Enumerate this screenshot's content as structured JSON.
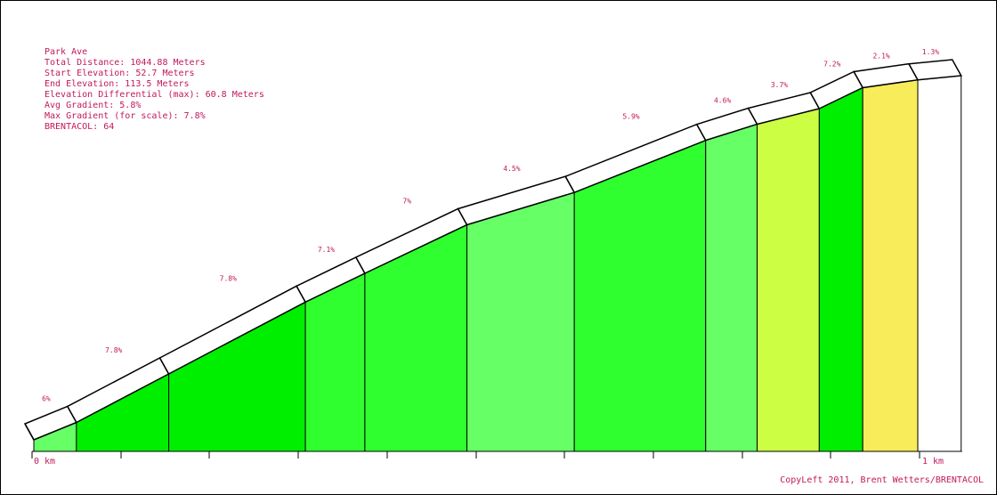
{
  "info": {
    "name": "Park Ave",
    "total_distance": "Total Distance: 1044.88 Meters",
    "start_elevation": "Start Elevation: 52.7 Meters",
    "end_elevation": "End Elevation: 113.5 Meters",
    "elevation_diff": "Elevation Differential (max): 60.8 Meters",
    "avg_gradient": "Avg Gradient: 5.8%",
    "max_gradient": "Max Gradient (for scale): 7.8%",
    "brentacol": "BRENTACOL: 64"
  },
  "credit": "CopyLeft 2011, Brent Wetters/BRENTACOL",
  "colors": {
    "text": "#c2185b",
    "band_white": "#ffffff",
    "dark_green": "#00ee00",
    "mid_green": "#2fff2f",
    "light_green": "#66ff66",
    "yellow_green": "#ccff44",
    "yellow": "#f8ec5a"
  },
  "chart_data": {
    "type": "area",
    "title": "Park Ave",
    "x_unit": "km",
    "xlim": [
      0,
      1.04488
    ],
    "ylim": [
      52.7,
      113.5
    ],
    "x_tick_labels": [
      "0 km",
      "1 km"
    ],
    "x_ticks": [
      0,
      0.1,
      0.2,
      0.3,
      0.4,
      0.5,
      0.6,
      0.7,
      0.8,
      0.9,
      1.0
    ],
    "segments": [
      {
        "start_km": 0.0,
        "end_km": 0.048,
        "gradient": "6%",
        "color": "light_green"
      },
      {
        "start_km": 0.048,
        "end_km": 0.152,
        "gradient": "7.8%",
        "color": "dark_green"
      },
      {
        "start_km": 0.152,
        "end_km": 0.306,
        "gradient": "7.8%",
        "color": "dark_green"
      },
      {
        "start_km": 0.306,
        "end_km": 0.373,
        "gradient": "7.1%",
        "color": "mid_green"
      },
      {
        "start_km": 0.373,
        "end_km": 0.488,
        "gradient": "7%",
        "color": "mid_green"
      },
      {
        "start_km": 0.488,
        "end_km": 0.609,
        "gradient": "4.5%",
        "color": "light_green"
      },
      {
        "start_km": 0.609,
        "end_km": 0.757,
        "gradient": "5.9%",
        "color": "mid_green"
      },
      {
        "start_km": 0.757,
        "end_km": 0.815,
        "gradient": "4.6%",
        "color": "light_green"
      },
      {
        "start_km": 0.815,
        "end_km": 0.885,
        "gradient": "3.7%",
        "color": "yellow_green"
      },
      {
        "start_km": 0.885,
        "end_km": 0.934,
        "gradient": "7.2%",
        "color": "dark_green"
      },
      {
        "start_km": 0.934,
        "end_km": 0.996,
        "gradient": "2.1%",
        "color": "yellow"
      },
      {
        "start_km": 0.996,
        "end_km": 1.04488,
        "gradient": "1.3%",
        "color": "band_white"
      }
    ],
    "elevations_m": [
      52.7,
      55.6,
      63.7,
      75.7,
      80.5,
      88.6,
      94.0,
      102.7,
      105.4,
      108.0,
      111.5,
      112.8,
      113.5
    ]
  }
}
